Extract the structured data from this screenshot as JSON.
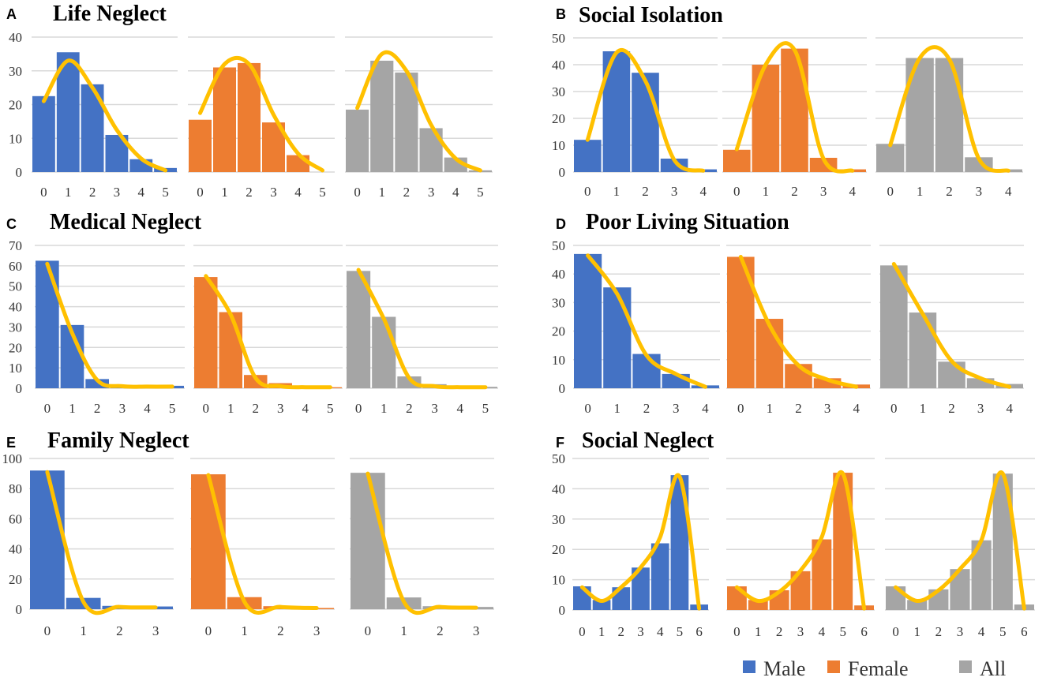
{
  "figure": {
    "colors": {
      "male": "#4472C4",
      "female": "#ED7D31",
      "all": "#A5A5A5",
      "curve": "#FFC000",
      "grid": "#D9D9D9"
    }
  },
  "legend": [
    {
      "key": "male",
      "label": "Male"
    },
    {
      "key": "female",
      "label": "Female"
    },
    {
      "key": "all",
      "label": "All"
    }
  ],
  "chart_data": [
    {
      "type": "bar",
      "panel": "A",
      "title": "Life Neglect",
      "ylim": [
        0,
        40
      ],
      "yticks": [
        0,
        10,
        20,
        30,
        40
      ],
      "grid": true,
      "series": [
        {
          "name": "Male",
          "key": "male",
          "categories": [
            "0",
            "1",
            "2",
            "3",
            "4",
            "5"
          ],
          "values": [
            22.5,
            35.5,
            26,
            11,
            3.8,
            1.2
          ],
          "curve": [
            21,
            33,
            25,
            12.5,
            4,
            0.5
          ]
        },
        {
          "name": "Female",
          "key": "female",
          "categories": [
            "0",
            "1",
            "2",
            "3",
            "4",
            "5"
          ],
          "values": [
            15.5,
            31,
            32.3,
            14.7,
            5,
            0
          ],
          "curve": [
            17.5,
            32,
            32,
            17,
            5.5,
            0.5
          ]
        },
        {
          "name": "All",
          "key": "all",
          "categories": [
            "0",
            "1",
            "2",
            "3",
            "4",
            "5"
          ],
          "values": [
            18.5,
            33,
            29.5,
            13,
            4.3,
            0.5
          ],
          "curve": [
            19,
            35,
            30,
            14,
            4,
            0.5
          ]
        }
      ]
    },
    {
      "type": "bar",
      "panel": "B",
      "title": "Social Isolation",
      "ylim": [
        0,
        50
      ],
      "yticks": [
        0,
        10,
        20,
        30,
        40,
        50
      ],
      "grid": true,
      "series": [
        {
          "name": "Male",
          "key": "male",
          "categories": [
            "0",
            "1",
            "2",
            "3",
            "4"
          ],
          "values": [
            12,
            45,
            37,
            5,
            1
          ],
          "curve": [
            12,
            44.5,
            34,
            4.5,
            0.5
          ]
        },
        {
          "name": "Female",
          "key": "female",
          "categories": [
            "0",
            "1",
            "2",
            "3",
            "4"
          ],
          "values": [
            8.3,
            40,
            46,
            5.3,
            1
          ],
          "curve": [
            8.5,
            40,
            45.5,
            5,
            0.5
          ]
        },
        {
          "name": "All",
          "key": "all",
          "categories": [
            "0",
            "1",
            "2",
            "3",
            "4"
          ],
          "values": [
            10.5,
            42.5,
            42.5,
            5.5,
            1
          ],
          "curve": [
            10,
            42.5,
            42,
            5,
            0.5
          ]
        }
      ]
    },
    {
      "type": "bar",
      "panel": "C",
      "title": "Medical Neglect",
      "ylim": [
        0,
        70
      ],
      "yticks": [
        0,
        10,
        20,
        30,
        40,
        50,
        60,
        70
      ],
      "grid": true,
      "series": [
        {
          "name": "Male",
          "key": "male",
          "categories": [
            "0",
            "1",
            "2",
            "3",
            "4",
            "5"
          ],
          "values": [
            62.5,
            31,
            4.5,
            1.5,
            0.8,
            1.2
          ],
          "curve": [
            61,
            27,
            4,
            1,
            0.8,
            0.8
          ]
        },
        {
          "name": "Female",
          "key": "female",
          "categories": [
            "0",
            "1",
            "2",
            "3",
            "4",
            "5"
          ],
          "values": [
            54.5,
            37.3,
            6.5,
            2.5,
            0.5,
            0.5
          ],
          "curve": [
            55,
            36,
            5,
            1,
            0.5,
            0.5
          ]
        },
        {
          "name": "All",
          "key": "all",
          "categories": [
            "0",
            "1",
            "2",
            "3",
            "4",
            "5"
          ],
          "values": [
            57.5,
            35,
            5.8,
            2,
            0.8,
            0.7
          ],
          "curve": [
            58,
            34,
            5,
            1,
            0.5,
            0.5
          ]
        }
      ]
    },
    {
      "type": "bar",
      "panel": "D",
      "title": "Poor Living Situation",
      "ylim": [
        0,
        50
      ],
      "yticks": [
        0,
        10,
        20,
        30,
        40,
        50
      ],
      "grid": true,
      "series": [
        {
          "name": "Male",
          "key": "male",
          "categories": [
            "0",
            "1",
            "2",
            "3",
            "4"
          ],
          "values": [
            47,
            35.3,
            12,
            5,
            1
          ],
          "curve": [
            46.5,
            33,
            11.5,
            5,
            0.5
          ]
        },
        {
          "name": "Female",
          "key": "female",
          "categories": [
            "0",
            "1",
            "2",
            "3",
            "4"
          ],
          "values": [
            46,
            24.3,
            8.5,
            3.5,
            1.3
          ],
          "curve": [
            46,
            22,
            8,
            3,
            0.5
          ]
        },
        {
          "name": "All",
          "key": "all",
          "categories": [
            "0",
            "1",
            "2",
            "3",
            "4"
          ],
          "values": [
            43,
            26.5,
            9.3,
            3.5,
            1.5
          ],
          "curve": [
            43.5,
            26,
            9.5,
            3.5,
            0.5
          ]
        }
      ]
    },
    {
      "type": "bar",
      "panel": "E",
      "title": "Family Neglect",
      "ylim": [
        0,
        100
      ],
      "yticks": [
        0,
        20,
        40,
        60,
        80,
        100
      ],
      "grid": true,
      "series": [
        {
          "name": "Male",
          "key": "male",
          "categories": [
            "0",
            "1",
            "2",
            "3"
          ],
          "values": [
            92,
            7.5,
            2.2,
            1.8
          ],
          "curve": [
            91,
            5,
            1.5,
            1.2
          ]
        },
        {
          "name": "Female",
          "key": "female",
          "categories": [
            "0",
            "1",
            "2",
            "3"
          ],
          "values": [
            89.5,
            8,
            2,
            0.8
          ],
          "curve": [
            89,
            5,
            1.5,
            0.8
          ]
        },
        {
          "name": "All",
          "key": "all",
          "categories": [
            "0",
            "1",
            "2",
            "3"
          ],
          "values": [
            90.5,
            7.8,
            2,
            1.5
          ],
          "curve": [
            90,
            5,
            1.5,
            1
          ]
        }
      ]
    },
    {
      "type": "bar",
      "panel": "F",
      "title": "Social Neglect",
      "ylim": [
        0,
        50
      ],
      "yticks": [
        0,
        10,
        20,
        30,
        40,
        50
      ],
      "grid": true,
      "series": [
        {
          "name": "Male",
          "key": "male",
          "categories": [
            "0",
            "1",
            "2",
            "3",
            "4",
            "5",
            "6"
          ],
          "values": [
            7.8,
            3.3,
            7.5,
            14,
            22,
            44.5,
            1.8
          ],
          "curve": [
            7.5,
            3,
            7.5,
            14,
            24,
            44,
            0.5
          ]
        },
        {
          "name": "Female",
          "key": "female",
          "categories": [
            "0",
            "1",
            "2",
            "3",
            "4",
            "5",
            "6"
          ],
          "values": [
            7.8,
            3.3,
            6.5,
            12.8,
            23.3,
            45.3,
            1.5
          ],
          "curve": [
            7.5,
            3,
            6,
            13,
            24,
            45,
            0.5
          ]
        },
        {
          "name": "All",
          "key": "all",
          "categories": [
            "0",
            "1",
            "2",
            "3",
            "4",
            "5",
            "6"
          ],
          "values": [
            7.8,
            3.3,
            6.8,
            13.5,
            23,
            45,
            1.8
          ],
          "curve": [
            7.5,
            3,
            6.5,
            13.5,
            23,
            45,
            0.5
          ]
        }
      ]
    }
  ]
}
